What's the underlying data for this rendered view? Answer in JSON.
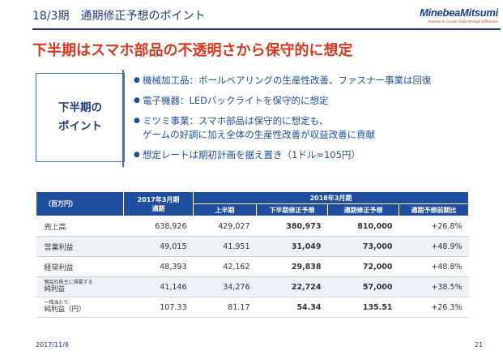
{
  "header": {
    "title": "18/3期　通期修正予想のポイント",
    "logo_name": "MinebeaMitsumi",
    "logo_tagline": "Passion to Create Value through Difference"
  },
  "headline": "下半期はスマホ部品の不透明さから保守的に想定",
  "points_box": {
    "label_line1": "下半期の",
    "label_line2": "ポイント"
  },
  "points": [
    {
      "bullet": "●",
      "line1": "機械加工品：ボールベアリングの生産性改善、ファスナー事業は回復",
      "line2": ""
    },
    {
      "bullet": "●",
      "line1": "電子機器：LEDバックライトを保守的に想定",
      "line2": ""
    },
    {
      "bullet": "●",
      "line1": "ミツミ事業：スマホ部品は保守的に想定も、",
      "line2": "ゲームの好調に加え全体の生産性改善が収益改善に貢献"
    },
    {
      "bullet": "●",
      "line1": "想定レートは期初計画を据え置き（1ドル=105円）",
      "line2": ""
    }
  ],
  "table": {
    "unit_label": "（百万円）",
    "col_2017_line1": "2017年3月期",
    "col_2017_line2": "通期",
    "group_2018": "2018年3月期",
    "col_h1": "上半期",
    "col_h2": "下半期修正予想",
    "col_full": "通期修正予想",
    "col_yoy": "通期予想前期比",
    "rows": [
      {
        "label": "売上高",
        "sub": "",
        "fy2017": "638,926",
        "h1": "429,027",
        "h2": "380,973",
        "full": "810,000",
        "yoy": "+26.8%"
      },
      {
        "label": "営業利益",
        "sub": "",
        "fy2017": "49,015",
        "h1": "41,951",
        "h2": "31,049",
        "full": "73,000",
        "yoy": "+48.9%"
      },
      {
        "label": "経常利益",
        "sub": "",
        "fy2017": "48,393",
        "h1": "42,162",
        "h2": "29,838",
        "full": "72,000",
        "yoy": "+48.8%"
      },
      {
        "label": "純利益",
        "sub": "親会社株主に帰属する",
        "fy2017": "41,146",
        "h1": "34,276",
        "h2": "22,724",
        "full": "57,000",
        "yoy": "+38.5%"
      },
      {
        "label": "純利益（円）",
        "sub": "一株当たり",
        "fy2017": "107.33",
        "h1": "81.17",
        "h2": "54.34",
        "full": "135.51",
        "yoy": "+26.3%"
      }
    ]
  },
  "footer": {
    "date": "2017/11/8",
    "page": "21"
  },
  "colors": {
    "navy": "#1f3a78",
    "accent_red": "#d9381e",
    "table_header": "#1f4e9e",
    "row_alt": "#eef2f8"
  }
}
